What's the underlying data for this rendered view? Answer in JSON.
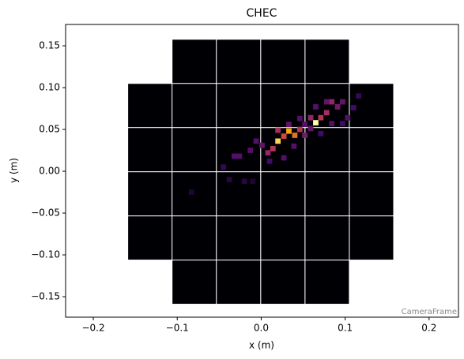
{
  "chart_data": {
    "type": "camera",
    "title": "CHEC",
    "x_label": "x  (m)",
    "y_label": "y  (m)",
    "annotation": "CameraFrame",
    "xlim": [
      -0.233,
      0.235
    ],
    "ylim": [
      -0.1745,
      0.1755
    ],
    "xticks": [
      {
        "value": -0.2,
        "label": "−0.2"
      },
      {
        "value": -0.1,
        "label": "−0.1"
      },
      {
        "value": 0,
        "label": "0.0"
      },
      0.1,
      0.2
    ],
    "yticks": [
      0.15,
      {
        "value": 0.1,
        "label": "0.10"
      },
      0.05,
      {
        "value": 0,
        "label": "0.00"
      },
      {
        "value": -0.05,
        "label": "−0.05"
      },
      {
        "value": -0.1,
        "label": "−0.10"
      },
      {
        "value": -0.15,
        "label": "−0.15"
      }
    ],
    "colormap": "inferno",
    "x": [
      0.065,
      0.033,
      0.02,
      0.04,
      0.027,
      0.046,
      0.071,
      0.078,
      0.059,
      0.084,
      0.014,
      0.008,
      0.02,
      0.001,
      0.052,
      0.091,
      0.097,
      0.078,
      0.065,
      0.103,
      -0.006,
      -0.013,
      -0.026,
      -0.032,
      0.01,
      0.039,
      0.052,
      0.059,
      0.084,
      0.11,
      0.116,
      0.097,
      0.027,
      0.033,
      0.046,
      -0.045,
      -0.038,
      -0.02,
      -0.01,
      -0.083,
      0.071
    ],
    "y": [
      0.058,
      0.048,
      0.036,
      0.043,
      0.042,
      0.05,
      0.064,
      0.07,
      0.064,
      0.083,
      0.027,
      0.022,
      0.049,
      0.031,
      0.043,
      0.077,
      0.083,
      0.083,
      0.077,
      0.064,
      0.036,
      0.025,
      0.018,
      0.018,
      0.012,
      0.03,
      0.056,
      0.051,
      0.057,
      0.076,
      0.09,
      0.057,
      0.016,
      0.056,
      0.063,
      0.005,
      -0.01,
      -0.012,
      -0.012,
      -0.025,
      0.045
    ],
    "values": [
      1.0,
      0.9,
      0.95,
      0.8,
      0.7,
      0.6,
      0.6,
      0.55,
      0.5,
      0.5,
      0.6,
      0.5,
      0.55,
      0.35,
      0.4,
      0.4,
      0.35,
      0.35,
      0.3,
      0.3,
      0.3,
      0.3,
      0.3,
      0.3,
      0.25,
      0.3,
      0.3,
      0.35,
      0.3,
      0.25,
      0.2,
      0.25,
      0.3,
      0.35,
      0.3,
      0.2,
      0.15,
      0.15,
      0.12,
      0.12,
      0.25
    ]
  }
}
